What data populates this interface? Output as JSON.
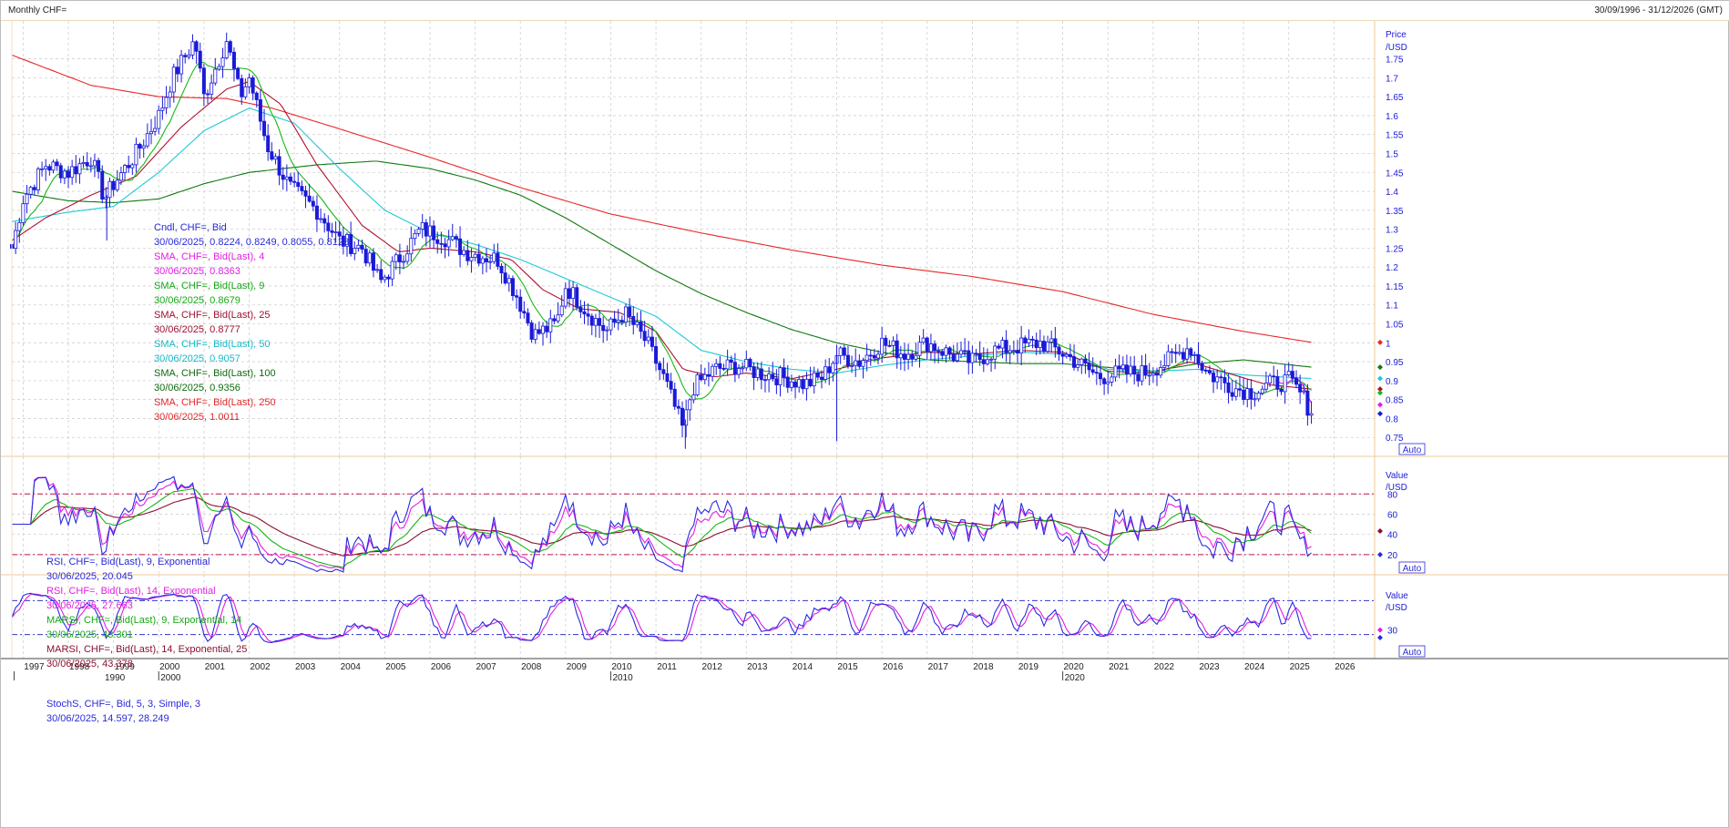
{
  "window": {
    "title": "Monthly CHF=",
    "date_range": "30/09/1996 - 31/12/2026 (GMT)"
  },
  "labels": {
    "price_axis_title": "Price",
    "price_axis_unit": "/USD",
    "value_axis_title": "Value",
    "value_axis_unit": "/USD",
    "auto_button": "Auto"
  },
  "colors": {
    "candle": "#1a1ad8",
    "sma4": "#e020e0",
    "sma9": "#16b816",
    "sma25": "#b01230",
    "sma50": "#20c8d8",
    "sma100": "#0f7a0f",
    "sma250": "#e82828",
    "rsi9": "#2a2ae0",
    "rsi14": "#e020e0",
    "marsi9": "#16b816",
    "marsi14": "#8a1030",
    "stoch_k": "#2a2ae0",
    "stoch_d": "#e020e0",
    "grid": "#d0d0d0",
    "ref_line": "#c01050",
    "ref_line_blue": "#3333cc",
    "panel_border": "#ecc89a"
  },
  "legend_main": [
    {
      "name": "Cndl, CHF=, Bid",
      "value": "30/06/2025, 0.8224, 0.8249, 0.8055, 0.8128",
      "color": "#2a2ad8",
      "valcolor": "#2a2ad8"
    },
    {
      "name": "SMA, CHF=, Bid(Last), 4",
      "value": "30/06/2025, 0.8363",
      "color": "#e020e0",
      "valcolor": "#e020e0"
    },
    {
      "name": "SMA, CHF=, Bid(Last), 9",
      "value": "30/06/2025, 0.8679",
      "color": "#16a816",
      "valcolor": "#16a816"
    },
    {
      "name": "SMA, CHF=, Bid(Last), 25",
      "value": "30/06/2025, 0.8777",
      "color": "#a01030",
      "valcolor": "#a01030"
    },
    {
      "name": "SMA, CHF=, Bid(Last), 50",
      "value": "30/06/2025, 0.9057",
      "color": "#18b8c8",
      "valcolor": "#18b8c8"
    },
    {
      "name": "SMA, CHF=, Bid(Last), 100",
      "value": "30/06/2025, 0.9356",
      "color": "#0f6a0f",
      "valcolor": "#0f6a0f"
    },
    {
      "name": "SMA, CHF=, Bid(Last), 250",
      "value": "30/06/2025, 1.0011",
      "color": "#e02828",
      "valcolor": "#e02828"
    }
  ],
  "legend_rsi": [
    {
      "name": "RSI, CHF=, Bid(Last), 9, Exponential",
      "value": "30/06/2025, 20.045",
      "color": "#2a2ad8",
      "valcolor": "#2a2ad8"
    },
    {
      "name": "RSI, CHF=, Bid(Last), 14, Exponential",
      "value": "30/06/2025, 27.663",
      "color": "#e020e0",
      "valcolor": "#e020e0"
    },
    {
      "name": "MARSI, CHF=, Bid(Last), 9, Exponential, 14",
      "value": "30/06/2025, 43.301",
      "color": "#16a816",
      "valcolor": "#16a816"
    },
    {
      "name": "MARSI, CHF=, Bid(Last), 14, Exponential, 25",
      "value": "30/06/2025, 43.378",
      "color": "#8a1030",
      "valcolor": "#8a1030"
    }
  ],
  "legend_stoch": [
    {
      "name": "StochS, CHF=, Bid, 5, 3, Simple, 3",
      "value": "30/06/2025, 14.597, 28.249",
      "color": "#2a2ad8",
      "valcolor": "#2a2ad8"
    }
  ],
  "chart_data": {
    "type": "line",
    "title": "Monthly CHF=",
    "ylabel": "Price /USD",
    "ylim": [
      0.7,
      1.85
    ],
    "xlim": [
      1996.75,
      2026.9
    ],
    "grid": true,
    "price_ticks": [
      0.75,
      0.8,
      0.85,
      0.9,
      0.95,
      1,
      1.05,
      1.1,
      1.15,
      1.2,
      1.25,
      1.3,
      1.35,
      1.4,
      1.45,
      1.5,
      1.55,
      1.6,
      1.65,
      1.7,
      1.75
    ],
    "year_labels": [
      "1997",
      "1998",
      "1999",
      "2000",
      "2001",
      "2002",
      "2003",
      "2004",
      "2005",
      "2006",
      "2007",
      "2008",
      "2009",
      "2010",
      "2011",
      "2012",
      "2013",
      "2014",
      "2015",
      "2016",
      "2017",
      "2018",
      "2019",
      "2020",
      "2021",
      "2022",
      "2023",
      "2024",
      "2025",
      "2026"
    ],
    "decade_labels": [
      {
        "x": 1996.8,
        "label": "1990"
      },
      {
        "x": 2000,
        "label": "2000"
      },
      {
        "x": 2010,
        "label": "2010"
      },
      {
        "x": 2020,
        "label": "2020"
      }
    ],
    "anchors": [
      [
        1996.75,
        1.25
      ],
      [
        1997.0,
        1.38
      ],
      [
        1997.5,
        1.47
      ],
      [
        1998.0,
        1.45
      ],
      [
        1998.5,
        1.49
      ],
      [
        1998.8,
        1.38
      ],
      [
        1999.0,
        1.42
      ],
      [
        1999.5,
        1.5
      ],
      [
        2000.0,
        1.6
      ],
      [
        2000.3,
        1.7
      ],
      [
        2000.8,
        1.8
      ],
      [
        2001.0,
        1.65
      ],
      [
        2001.5,
        1.8
      ],
      [
        2001.8,
        1.65
      ],
      [
        2002.0,
        1.7
      ],
      [
        2002.4,
        1.52
      ],
      [
        2002.9,
        1.41
      ],
      [
        2003.5,
        1.35
      ],
      [
        2004.0,
        1.27
      ],
      [
        2004.5,
        1.25
      ],
      [
        2004.9,
        1.16
      ],
      [
        2005.3,
        1.22
      ],
      [
        2005.8,
        1.3
      ],
      [
        2006.3,
        1.28
      ],
      [
        2006.8,
        1.24
      ],
      [
        2007.5,
        1.22
      ],
      [
        2007.9,
        1.13
      ],
      [
        2008.3,
        1.02
      ],
      [
        2008.8,
        1.05
      ],
      [
        2009.0,
        1.15
      ],
      [
        2009.5,
        1.08
      ],
      [
        2009.9,
        1.03
      ],
      [
        2010.3,
        1.08
      ],
      [
        2010.8,
        1.0
      ],
      [
        2011.2,
        0.9
      ],
      [
        2011.6,
        0.77
      ],
      [
        2011.8,
        0.88
      ],
      [
        2012.3,
        0.93
      ],
      [
        2012.8,
        0.94
      ],
      [
        2013.3,
        0.92
      ],
      [
        2013.8,
        0.91
      ],
      [
        2014.3,
        0.89
      ],
      [
        2014.7,
        0.91
      ],
      [
        2015.0,
        0.97
      ],
      [
        2015.5,
        0.95
      ],
      [
        2016.0,
        1.0
      ],
      [
        2016.5,
        0.97
      ],
      [
        2017.0,
        1.0
      ],
      [
        2017.5,
        0.97
      ],
      [
        2018.0,
        0.95
      ],
      [
        2018.5,
        0.98
      ],
      [
        2019.0,
        0.99
      ],
      [
        2019.5,
        1.0
      ],
      [
        2019.9,
        0.98
      ],
      [
        2020.3,
        0.95
      ],
      [
        2020.8,
        0.91
      ],
      [
        2021.3,
        0.92
      ],
      [
        2021.8,
        0.92
      ],
      [
        2022.3,
        0.95
      ],
      [
        2022.8,
        0.99
      ],
      [
        2023.2,
        0.92
      ],
      [
        2023.8,
        0.88
      ],
      [
        2024.2,
        0.87
      ],
      [
        2024.6,
        0.89
      ],
      [
        2025.0,
        0.9
      ],
      [
        2025.3,
        0.86
      ],
      [
        2025.5,
        0.813
      ]
    ],
    "sma250_anchors": [
      [
        1996.75,
        1.76
      ],
      [
        1998.5,
        1.68
      ],
      [
        2000.0,
        1.65
      ],
      [
        2001.5,
        1.645
      ],
      [
        2002.5,
        1.62
      ],
      [
        2004.0,
        1.565
      ],
      [
        2006.0,
        1.49
      ],
      [
        2008.0,
        1.41
      ],
      [
        2010.0,
        1.34
      ],
      [
        2012.0,
        1.29
      ],
      [
        2014.0,
        1.245
      ],
      [
        2016.0,
        1.205
      ],
      [
        2018.0,
        1.175
      ],
      [
        2020.0,
        1.135
      ],
      [
        2022.0,
        1.075
      ],
      [
        2024.0,
        1.03
      ],
      [
        2025.5,
        1.0011
      ]
    ],
    "sma100_anchors": [
      [
        1996.75,
        1.4
      ],
      [
        1998.0,
        1.375
      ],
      [
        1999.0,
        1.37
      ],
      [
        2000.0,
        1.38
      ],
      [
        2001.0,
        1.42
      ],
      [
        2002.0,
        1.45
      ],
      [
        2003.5,
        1.47
      ],
      [
        2004.8,
        1.48
      ],
      [
        2006.0,
        1.46
      ],
      [
        2007.0,
        1.43
      ],
      [
        2008.0,
        1.39
      ],
      [
        2009.0,
        1.33
      ],
      [
        2010.0,
        1.26
      ],
      [
        2011.0,
        1.19
      ],
      [
        2012.0,
        1.13
      ],
      [
        2013.0,
        1.08
      ],
      [
        2014.0,
        1.035
      ],
      [
        2015.0,
        1.0
      ],
      [
        2016.0,
        0.975
      ],
      [
        2017.0,
        0.955
      ],
      [
        2018.0,
        0.95
      ],
      [
        2019.0,
        0.945
      ],
      [
        2020.0,
        0.945
      ],
      [
        2021.0,
        0.935
      ],
      [
        2022.0,
        0.925
      ],
      [
        2023.0,
        0.945
      ],
      [
        2024.0,
        0.955
      ],
      [
        2025.5,
        0.9356
      ]
    ],
    "sma50_anchors": [
      [
        1996.75,
        1.32
      ],
      [
        1998.0,
        1.345
      ],
      [
        1999.0,
        1.36
      ],
      [
        2000.0,
        1.45
      ],
      [
        2001.0,
        1.56
      ],
      [
        2002.0,
        1.62
      ],
      [
        2003.0,
        1.58
      ],
      [
        2004.0,
        1.46
      ],
      [
        2005.0,
        1.35
      ],
      [
        2006.0,
        1.29
      ],
      [
        2007.0,
        1.26
      ],
      [
        2008.0,
        1.22
      ],
      [
        2009.0,
        1.17
      ],
      [
        2010.0,
        1.12
      ],
      [
        2011.0,
        1.07
      ],
      [
        2012.0,
        0.98
      ],
      [
        2013.0,
        0.95
      ],
      [
        2014.0,
        0.93
      ],
      [
        2015.0,
        0.92
      ],
      [
        2016.0,
        0.94
      ],
      [
        2017.0,
        0.955
      ],
      [
        2018.0,
        0.965
      ],
      [
        2019.0,
        0.975
      ],
      [
        2020.0,
        0.97
      ],
      [
        2021.0,
        0.93
      ],
      [
        2022.0,
        0.925
      ],
      [
        2023.0,
        0.93
      ],
      [
        2024.0,
        0.915
      ],
      [
        2025.5,
        0.9057
      ]
    ],
    "sma25_anchors": [
      [
        1996.75,
        1.27
      ],
      [
        1997.5,
        1.33
      ],
      [
        1998.5,
        1.39
      ],
      [
        1999.5,
        1.44
      ],
      [
        2000.5,
        1.57
      ],
      [
        2001.5,
        1.67
      ],
      [
        2002.0,
        1.69
      ],
      [
        2002.7,
        1.63
      ],
      [
        2003.5,
        1.47
      ],
      [
        2004.5,
        1.31
      ],
      [
        2005.3,
        1.24
      ],
      [
        2006.0,
        1.25
      ],
      [
        2007.0,
        1.24
      ],
      [
        2007.8,
        1.22
      ],
      [
        2008.5,
        1.14
      ],
      [
        2009.3,
        1.09
      ],
      [
        2010.2,
        1.08
      ],
      [
        2011.0,
        1.03
      ],
      [
        2011.6,
        0.93
      ],
      [
        2012.3,
        0.91
      ],
      [
        2013.0,
        0.92
      ],
      [
        2014.0,
        0.905
      ],
      [
        2015.0,
        0.93
      ],
      [
        2016.0,
        0.96
      ],
      [
        2017.0,
        0.975
      ],
      [
        2018.0,
        0.97
      ],
      [
        2019.0,
        0.98
      ],
      [
        2020.0,
        0.975
      ],
      [
        2021.0,
        0.925
      ],
      [
        2022.0,
        0.92
      ],
      [
        2022.8,
        0.95
      ],
      [
        2023.5,
        0.925
      ],
      [
        2024.5,
        0.89
      ],
      [
        2025.5,
        0.8777
      ]
    ]
  }
}
